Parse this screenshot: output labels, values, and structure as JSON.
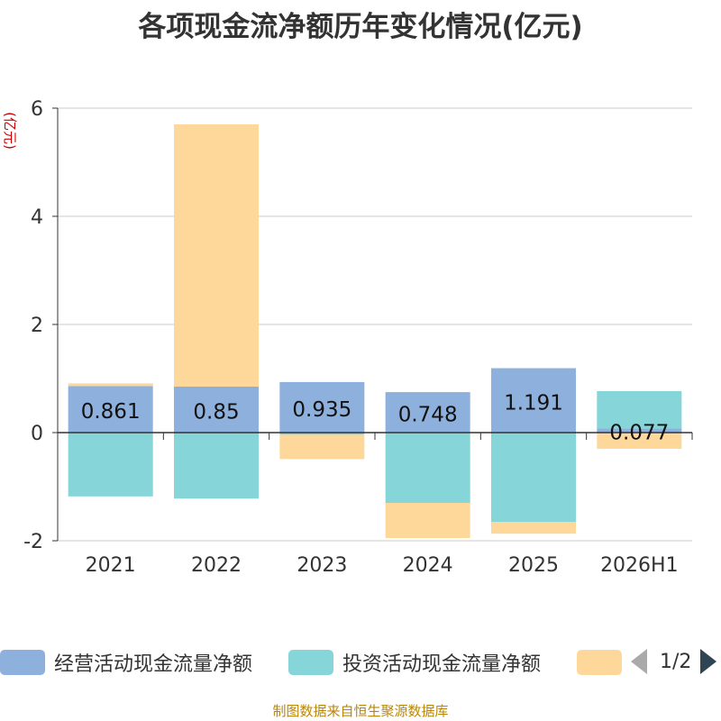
{
  "title": "各项现金流净额历年变化情况(亿元)",
  "source": "制图数据来自恒生聚源数据库",
  "colors": {
    "operating": "#8eb0dc",
    "investing": "#86d5d8",
    "financing": "#fdd89a",
    "axis_label_unit": "#cc0000",
    "grid": "#cccccc",
    "text": "#333333"
  },
  "legend": {
    "items": [
      "经营活动现金流量净额",
      "投资活动现金流量净额",
      ""
    ],
    "pager_text": "1/2",
    "prev_icon": "triangle-left-icon",
    "next_icon": "triangle-right-icon"
  },
  "chart_data": {
    "type": "bar",
    "stacked": true,
    "title": "各项现金流净额历年变化情况(亿元)",
    "ylabel": "(亿元)",
    "ylim": [
      -2,
      6
    ],
    "yticks": [
      -2,
      0,
      2,
      4,
      6
    ],
    "categories": [
      "2021",
      "2022",
      "2023",
      "2024",
      "2025",
      "2026H1"
    ],
    "series": [
      {
        "name": "经营活动现金流量净额",
        "values": [
          0.861,
          0.85,
          0.935,
          0.748,
          1.191,
          0.077
        ],
        "labels": [
          "0.861",
          "0.85",
          "0.935",
          "0.748",
          "1.191",
          "0.077"
        ]
      },
      {
        "name": "投资活动现金流量净额",
        "values": [
          -1.18,
          -1.22,
          -0.04,
          -1.3,
          -1.65,
          0.69
        ]
      },
      {
        "values": [
          0.05,
          4.85,
          -0.45,
          -0.65,
          -0.22,
          -0.3
        ]
      }
    ],
    "grid": true,
    "legend_position": "bottom"
  }
}
